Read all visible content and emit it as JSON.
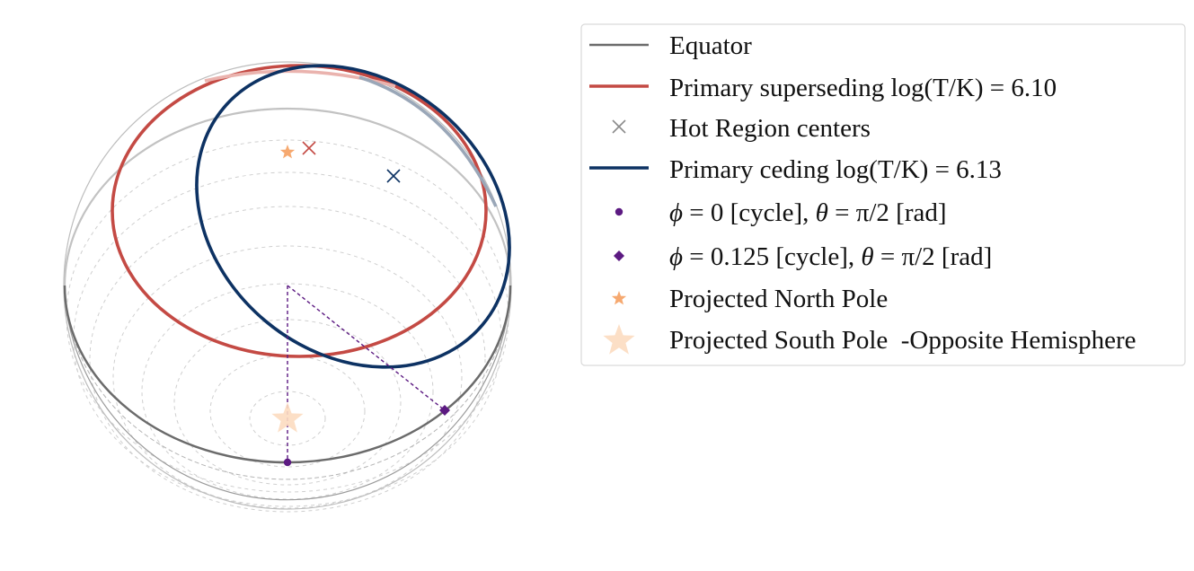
{
  "colors": {
    "equator": "#6b6b6b",
    "superseding": "#c44a44",
    "ceding": "#0d3263",
    "pole_marker": "#f6a970",
    "south_pole_marker": "#fcdcc0",
    "phase_marker": "#5c1a82",
    "hot_center_superseding": "#c44a44",
    "hot_center_ceding": "#0d3263",
    "hot_center_legend": "#8a8a8a",
    "grid": "#c8c8c8"
  },
  "icons": {
    "equator": "line-icon",
    "superseding": "line-icon",
    "hot_centers": "x-marker-icon",
    "ceding": "line-icon",
    "phase0": "dot-marker-icon",
    "phase0125": "diamond-marker-icon",
    "north_pole": "star-marker-icon",
    "south_pole": "star-marker-icon"
  },
  "legend": {
    "placement": "right",
    "items": [
      {
        "key": "equator",
        "label": "Equator"
      },
      {
        "key": "superseding",
        "label": "Primary superseding log(T/K) = 6.10"
      },
      {
        "key": "hot_centers",
        "label": "Hot Region centers"
      },
      {
        "key": "ceding",
        "label": "Primary ceding log(T/K) = 6.13"
      },
      {
        "key": "phase0",
        "phi_sym": "ϕ",
        "theta_sym": "θ",
        "phi_val": " = 0 [cycle], ",
        "theta_val": " = π/2 [rad]"
      },
      {
        "key": "phase0125",
        "phi_sym": "ϕ",
        "theta_sym": "θ",
        "phi_val": " = 0.125 [cycle], ",
        "theta_val": " = π/2 [rad]"
      },
      {
        "key": "north_pole",
        "label": "Projected North Pole"
      },
      {
        "key": "south_pole",
        "label": "Projected South Pole  -Opposite Hemisphere"
      }
    ]
  }
}
